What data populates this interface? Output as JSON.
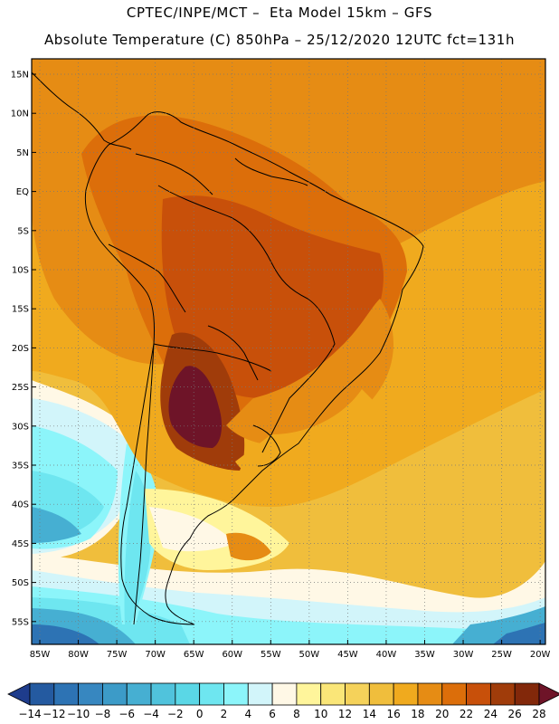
{
  "title_line1": "CPTEC/INPE/MCT –  Eta Model 15km – GFS",
  "title_line2": "Absolute Temperature (C) 850hPa – 25/12/2020 12UTC fct=131h",
  "lat_labels": [
    "15N",
    "10N",
    "5N",
    "EQ",
    "5S",
    "10S",
    "15S",
    "20S",
    "25S",
    "30S",
    "35S",
    "40S",
    "45S",
    "50S",
    "55S"
  ],
  "lon_labels": [
    "85W",
    "80W",
    "75W",
    "70W",
    "65W",
    "60W",
    "55W",
    "50W",
    "45W",
    "40W",
    "35W",
    "30W",
    "25W",
    "20W"
  ],
  "chart_data": {
    "type": "heatmap",
    "variable": "Absolute Temperature (C) 850hPa",
    "units": "C",
    "levels": [
      -14,
      -12,
      -10,
      -8,
      -6,
      -4,
      -2,
      0,
      2,
      4,
      6,
      8,
      10,
      12,
      14,
      16,
      18,
      20,
      22,
      24,
      26,
      28
    ],
    "colors": [
      "#1e3c8c",
      "#245aa0",
      "#2d73b4",
      "#3787c0",
      "#3c9bc8",
      "#46afd2",
      "#50c3dc",
      "#5ad7e6",
      "#6ee6f0",
      "#8cf5fa",
      "#d2f5fa",
      "#fff8e6",
      "#fff59b",
      "#fae678",
      "#f5d25a",
      "#f0be3c",
      "#f0aa1e",
      "#e68c14",
      "#dc6e0a",
      "#c8500a",
      "#a03c0a",
      "#82280a",
      "#6e1428"
    ],
    "xlim": [
      -86,
      -19
    ],
    "ylim": [
      -58,
      16
    ]
  }
}
